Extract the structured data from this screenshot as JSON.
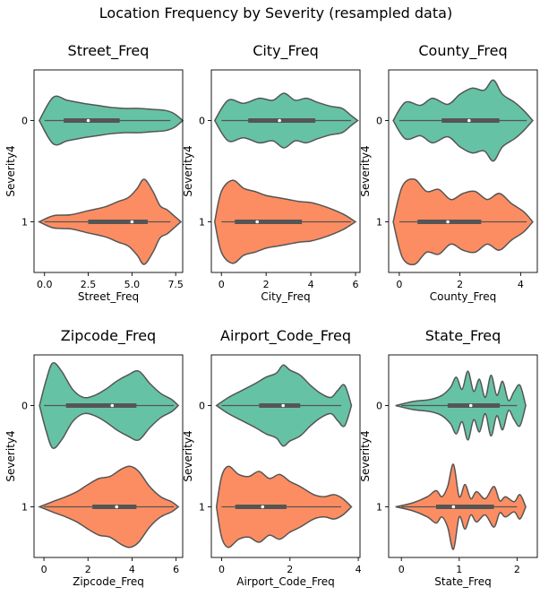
{
  "figure": {
    "suptitle": "Location Frequency by Severity (resampled data)"
  },
  "palette": {
    "green": "#66c2a5",
    "orange": "#fc8d62",
    "edge": "#555555"
  },
  "chart_data": [
    {
      "type": "violin",
      "title": "Street_Freq",
      "xlabel": "Street_Freq",
      "ylabel": "Severity4",
      "categories": [
        "0",
        "1"
      ],
      "xlim": [
        -0.6,
        7.9
      ],
      "xticks": [
        0,
        2.5,
        5,
        7.5
      ],
      "xtick_labels": [
        "0.0",
        "2.5",
        "5.0",
        "7.5"
      ],
      "series": [
        {
          "category": "0",
          "color": "#66c2a5",
          "min": 0.0,
          "q1": 1.1,
          "median": 2.5,
          "q3": 4.3,
          "max": 7.2,
          "density_x": [
            -0.3,
            0.5,
            1.3,
            2.2,
            3.0,
            3.8,
            4.6,
            5.4,
            6.2,
            6.9,
            7.4,
            7.9
          ],
          "density_w": [
            0.0,
            0.23,
            0.2,
            0.17,
            0.15,
            0.13,
            0.12,
            0.12,
            0.11,
            0.1,
            0.07,
            0.0
          ]
        },
        {
          "category": "1",
          "color": "#fc8d62",
          "min": 0.0,
          "q1": 2.5,
          "median": 5.0,
          "q3": 5.9,
          "max": 7.2,
          "density_x": [
            -0.3,
            0.5,
            1.5,
            2.5,
            3.5,
            4.2,
            4.8,
            5.3,
            5.7,
            6.2,
            6.6,
            7.0,
            7.4,
            7.8
          ],
          "density_w": [
            0.0,
            0.06,
            0.07,
            0.11,
            0.15,
            0.2,
            0.24,
            0.33,
            0.42,
            0.3,
            0.16,
            0.12,
            0.06,
            0.0
          ]
        }
      ]
    },
    {
      "type": "violin",
      "title": "City_Freq",
      "xlabel": "City_Freq",
      "ylabel": "Severity4",
      "categories": [
        "0",
        "1"
      ],
      "xlim": [
        -0.45,
        6.2
      ],
      "xticks": [
        0,
        2,
        4,
        6
      ],
      "xtick_labels": [
        "0",
        "2",
        "4",
        "6"
      ],
      "series": [
        {
          "category": "0",
          "color": "#66c2a5",
          "min": 0.0,
          "q1": 1.2,
          "median": 2.6,
          "q3": 4.2,
          "max": 5.8,
          "density_x": [
            -0.3,
            0.3,
            1.0,
            1.7,
            2.3,
            2.8,
            3.3,
            3.8,
            4.3,
            4.9,
            5.4,
            5.8,
            6.1
          ],
          "density_w": [
            0.0,
            0.2,
            0.17,
            0.22,
            0.2,
            0.27,
            0.2,
            0.22,
            0.18,
            0.14,
            0.12,
            0.05,
            0.0
          ]
        },
        {
          "category": "1",
          "color": "#fc8d62",
          "min": 0.0,
          "q1": 0.6,
          "median": 1.6,
          "q3": 3.6,
          "max": 5.8,
          "density_x": [
            -0.3,
            0.0,
            0.5,
            1.0,
            1.5,
            2.0,
            2.5,
            3.0,
            3.5,
            4.0,
            4.5,
            5.0,
            5.5,
            6.0
          ],
          "density_w": [
            0.0,
            0.3,
            0.41,
            0.33,
            0.3,
            0.26,
            0.24,
            0.22,
            0.2,
            0.19,
            0.16,
            0.12,
            0.07,
            0.0
          ]
        }
      ]
    },
    {
      "type": "violin",
      "title": "County_Freq",
      "xlabel": "County_Freq",
      "ylabel": "Severity4",
      "categories": [
        "0",
        "1"
      ],
      "xlim": [
        -0.35,
        4.55
      ],
      "xticks": [
        0,
        2,
        4
      ],
      "xtick_labels": [
        "0",
        "2",
        "4"
      ],
      "series": [
        {
          "category": "0",
          "color": "#66c2a5",
          "min": 0.0,
          "q1": 1.4,
          "median": 2.3,
          "q3": 3.3,
          "max": 4.2,
          "density_x": [
            -0.2,
            0.2,
            0.7,
            1.1,
            1.6,
            2.0,
            2.4,
            2.8,
            3.1,
            3.4,
            3.8,
            4.1,
            4.4
          ],
          "density_w": [
            0.0,
            0.18,
            0.15,
            0.22,
            0.16,
            0.26,
            0.32,
            0.3,
            0.4,
            0.26,
            0.18,
            0.1,
            0.0
          ]
        },
        {
          "category": "1",
          "color": "#fc8d62",
          "min": 0.0,
          "q1": 0.6,
          "median": 1.6,
          "q3": 2.7,
          "max": 4.2,
          "density_x": [
            -0.2,
            0.1,
            0.5,
            0.9,
            1.3,
            1.7,
            2.1,
            2.5,
            2.9,
            3.3,
            3.7,
            4.1,
            4.4
          ],
          "density_w": [
            0.0,
            0.35,
            0.42,
            0.3,
            0.32,
            0.22,
            0.28,
            0.3,
            0.22,
            0.28,
            0.18,
            0.1,
            0.0
          ]
        }
      ]
    },
    {
      "type": "violin",
      "title": "Zipcode_Freq",
      "xlabel": "Zipcode_Freq",
      "ylabel": "Severity4",
      "categories": [
        "0",
        "1"
      ],
      "xlim": [
        -0.45,
        6.3
      ],
      "xticks": [
        0,
        2,
        4,
        6
      ],
      "xtick_labels": [
        "0",
        "2",
        "4",
        "6"
      ],
      "series": [
        {
          "category": "0",
          "color": "#66c2a5",
          "min": 0.0,
          "q1": 1.0,
          "median": 3.1,
          "q3": 4.2,
          "max": 5.9,
          "density_x": [
            -0.2,
            0.1,
            0.4,
            0.8,
            1.3,
            1.8,
            2.3,
            2.8,
            3.3,
            3.8,
            4.3,
            4.8,
            5.3,
            5.8,
            6.1
          ],
          "density_w": [
            0.0,
            0.25,
            0.42,
            0.34,
            0.16,
            0.08,
            0.1,
            0.16,
            0.24,
            0.3,
            0.34,
            0.22,
            0.12,
            0.06,
            0.0
          ]
        },
        {
          "category": "1",
          "color": "#fc8d62",
          "min": 0.0,
          "q1": 2.2,
          "median": 3.3,
          "q3": 4.2,
          "max": 5.9,
          "density_x": [
            -0.2,
            0.5,
            1.0,
            1.5,
            2.0,
            2.5,
            3.0,
            3.5,
            3.9,
            4.3,
            4.8,
            5.3,
            5.8,
            6.1
          ],
          "density_w": [
            0.0,
            0.06,
            0.1,
            0.15,
            0.22,
            0.28,
            0.3,
            0.37,
            0.4,
            0.35,
            0.2,
            0.1,
            0.05,
            0.0
          ]
        }
      ]
    },
    {
      "type": "violin",
      "title": "Airport_Code_Freq",
      "xlabel": "Airport_Code_Freq",
      "ylabel": "Severity4",
      "categories": [
        "0",
        "1"
      ],
      "xlim": [
        -0.3,
        4.05
      ],
      "xticks": [
        0,
        2,
        4
      ],
      "xtick_labels": [
        "0",
        "2",
        "4"
      ],
      "series": [
        {
          "category": "0",
          "color": "#66c2a5",
          "min": 0.0,
          "q1": 1.1,
          "median": 1.8,
          "q3": 2.3,
          "max": 3.5,
          "density_x": [
            -0.15,
            0.2,
            0.6,
            1.0,
            1.3,
            1.6,
            1.8,
            2.0,
            2.3,
            2.6,
            2.9,
            3.2,
            3.4,
            3.6,
            3.8
          ],
          "density_w": [
            0.0,
            0.08,
            0.15,
            0.22,
            0.28,
            0.32,
            0.4,
            0.35,
            0.3,
            0.2,
            0.12,
            0.08,
            0.15,
            0.2,
            0.0
          ]
        },
        {
          "category": "1",
          "color": "#fc8d62",
          "min": 0.0,
          "q1": 0.4,
          "median": 1.2,
          "q3": 1.9,
          "max": 3.5,
          "density_x": [
            -0.15,
            0.0,
            0.2,
            0.5,
            0.8,
            1.1,
            1.4,
            1.7,
            2.0,
            2.3,
            2.7,
            3.0,
            3.3,
            3.55,
            3.8
          ],
          "density_w": [
            0.0,
            0.3,
            0.4,
            0.32,
            0.3,
            0.35,
            0.28,
            0.32,
            0.25,
            0.2,
            0.12,
            0.1,
            0.12,
            0.08,
            0.0
          ]
        }
      ]
    },
    {
      "type": "violin",
      "title": "State_Freq",
      "xlabel": "State_Freq",
      "ylabel": "Severity4",
      "categories": [
        "0",
        "1"
      ],
      "xlim": [
        -0.22,
        2.35
      ],
      "xticks": [
        0,
        1,
        2
      ],
      "xtick_labels": [
        "0",
        "1",
        "2"
      ],
      "series": [
        {
          "category": "0",
          "color": "#66c2a5",
          "min": 0.0,
          "q1": 0.8,
          "median": 1.2,
          "q3": 1.7,
          "max": 2.0,
          "density_x": [
            -0.1,
            0.2,
            0.5,
            0.7,
            0.85,
            0.95,
            1.05,
            1.15,
            1.25,
            1.35,
            1.45,
            1.55,
            1.65,
            1.75,
            1.85,
            1.95,
            2.05,
            2.15
          ],
          "density_w": [
            0.0,
            0.04,
            0.06,
            0.1,
            0.18,
            0.28,
            0.16,
            0.34,
            0.14,
            0.26,
            0.08,
            0.3,
            0.1,
            0.24,
            0.05,
            0.14,
            0.2,
            0.0
          ]
        },
        {
          "category": "1",
          "color": "#fc8d62",
          "min": 0.0,
          "q1": 0.6,
          "median": 0.9,
          "q3": 1.6,
          "max": 2.0,
          "density_x": [
            -0.1,
            0.2,
            0.45,
            0.6,
            0.7,
            0.8,
            0.9,
            1.0,
            1.1,
            1.2,
            1.3,
            1.45,
            1.6,
            1.7,
            1.8,
            1.95,
            2.05,
            2.15
          ],
          "density_w": [
            0.0,
            0.04,
            0.1,
            0.16,
            0.1,
            0.2,
            0.42,
            0.1,
            0.22,
            0.08,
            0.15,
            0.08,
            0.2,
            0.06,
            0.1,
            0.05,
            0.12,
            0.0
          ]
        }
      ]
    }
  ]
}
